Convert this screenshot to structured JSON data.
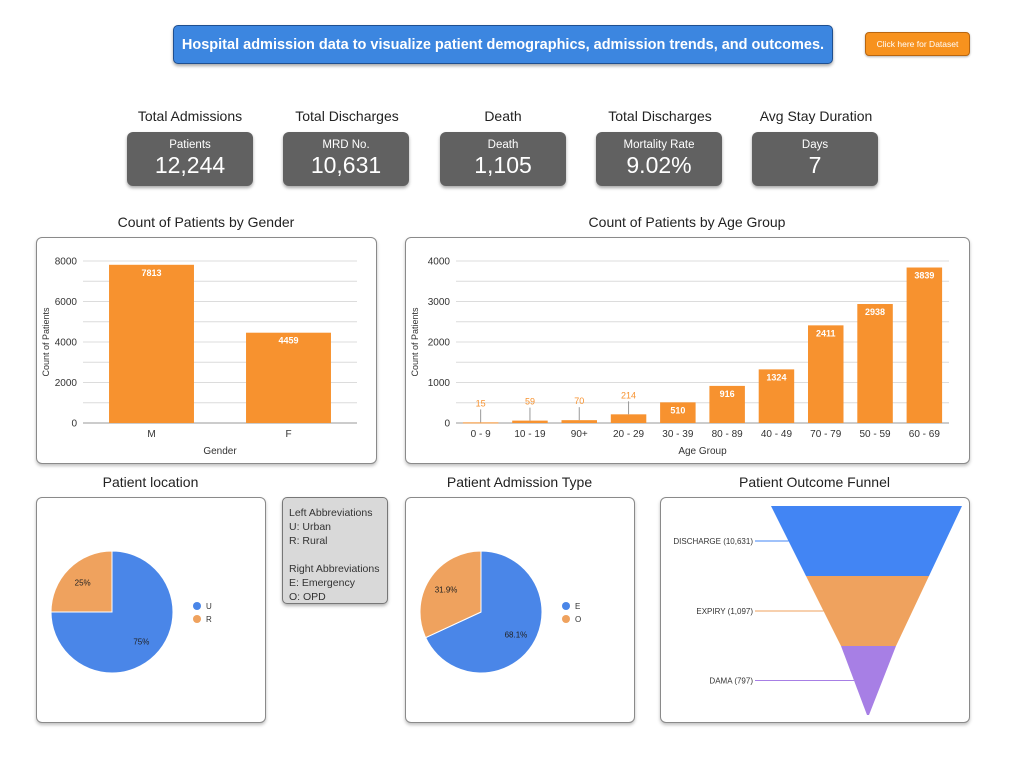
{
  "banner": {
    "text": "Hospital admission data to visualize patient demographics, admission trends, and outcomes."
  },
  "dataset_button": {
    "label": "Click here for Dataset"
  },
  "kpis": [
    {
      "heading": "Total Admissions",
      "label": "Patients",
      "value": "12,244"
    },
    {
      "heading": "Total Discharges",
      "label": "MRD No.",
      "value": "10,631"
    },
    {
      "heading": "Death",
      "label": "Death",
      "value": "1,105"
    },
    {
      "heading": "Total Discharges",
      "label": "Mortality Rate",
      "value": "9.02%"
    },
    {
      "heading": "Avg Stay Duration",
      "label": "Days",
      "value": "7"
    }
  ],
  "abbreviations": {
    "left_title": "Left Abbreviations",
    "left_items": [
      "U: Urban",
      "R: Rural"
    ],
    "right_title": "Right Abbreviations",
    "right_items": [
      "E: Emergency",
      "O: OPD"
    ]
  },
  "colors": {
    "bar": "#f7922f",
    "blue": "#4a86e8",
    "orange": "#efa25e",
    "purple": "#a77fe5",
    "funnel_blue": "#4285f4"
  },
  "chart_data": [
    {
      "id": "gender",
      "type": "bar",
      "title": "Count of Patients by Gender",
      "xlabel": "Gender",
      "ylabel": "Count of Patients",
      "categories": [
        "M",
        "F"
      ],
      "values": [
        7813,
        4459
      ],
      "ylim": [
        0,
        8000
      ],
      "yticks": [
        0,
        2000,
        4000,
        6000,
        8000
      ],
      "grid": true
    },
    {
      "id": "age",
      "type": "bar",
      "title": "Count of Patients by Age Group",
      "xlabel": "Age Group",
      "ylabel": "Count of Patients",
      "categories": [
        "0 - 9",
        "10 - 19",
        "90+",
        "20 - 29",
        "30 - 39",
        "80 - 89",
        "40 - 49",
        "70 - 79",
        "50 - 59",
        "60 - 69"
      ],
      "values": [
        15,
        59,
        70,
        214,
        510,
        916,
        1324,
        2411,
        2938,
        3839
      ],
      "ylim": [
        0,
        4000
      ],
      "yticks": [
        0,
        1000,
        2000,
        3000,
        4000
      ],
      "grid": true
    },
    {
      "id": "location",
      "type": "pie",
      "title": "Patient location",
      "slices": [
        {
          "label": "U",
          "value": 75,
          "text": "75%"
        },
        {
          "label": "R",
          "value": 25,
          "text": "25%"
        }
      ],
      "legend": "right"
    },
    {
      "id": "admission",
      "type": "pie",
      "title": "Patient Admission Type",
      "slices": [
        {
          "label": "E",
          "value": 68.1,
          "text": "68.1%"
        },
        {
          "label": "O",
          "value": 31.9,
          "text": "31.9%"
        }
      ],
      "legend": "right"
    },
    {
      "id": "funnel",
      "type": "funnel",
      "title": "Patient Outcome Funnel",
      "stages": [
        {
          "label": "DISCHARGE (10,631)",
          "value": 10631
        },
        {
          "label": "EXPIRY (1,097)",
          "value": 1097
        },
        {
          "label": "DAMA (797)",
          "value": 797
        }
      ]
    }
  ]
}
